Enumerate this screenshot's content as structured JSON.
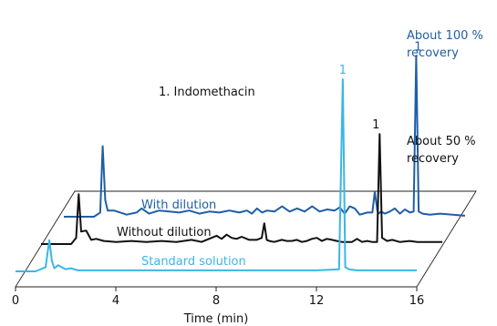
{
  "chart_data": {
    "type": "line",
    "title": "",
    "xlabel": "Time (min)",
    "ylabel": "",
    "xlim": [
      0,
      16
    ],
    "xticks": [
      "0",
      "4",
      "8",
      "12",
      "16"
    ],
    "grid": false,
    "layout": "3d-stacked",
    "annotation": "1. Indomethacin",
    "series": [
      {
        "name": "With dilution",
        "color": "#1f5ea8",
        "peak_label": "1",
        "note": [
          "About 100 %",
          "recovery"
        ],
        "x": [
          0.0,
          1.2,
          1.45,
          1.55,
          1.65,
          1.75,
          2.0,
          2.5,
          2.9,
          3.1,
          3.4,
          3.8,
          4.2,
          4.6,
          5.0,
          5.4,
          5.8,
          6.2,
          6.6,
          7.0,
          7.3,
          7.5,
          7.7,
          7.9,
          8.1,
          8.4,
          8.7,
          9.0,
          9.3,
          9.6,
          9.9,
          10.2,
          10.5,
          10.8,
          11.0,
          11.2,
          11.4,
          11.6,
          11.8,
          12.1,
          12.3,
          12.4,
          12.5,
          12.55,
          12.65,
          12.8,
          13.0,
          13.2,
          13.4,
          13.6,
          13.8,
          13.95,
          14.05,
          14.15,
          14.3,
          14.6,
          15.0,
          15.5,
          16.0
        ],
        "y": [
          0,
          0,
          0.4,
          6.8,
          1.6,
          0.6,
          0.6,
          0.2,
          0.4,
          0.8,
          0.3,
          0.6,
          0.5,
          0.4,
          0.6,
          0.3,
          0.5,
          0.4,
          0.6,
          0.4,
          0.6,
          0.3,
          0.8,
          0.4,
          0.6,
          0.5,
          1.0,
          0.5,
          0.8,
          0.5,
          1.0,
          0.5,
          0.7,
          0.6,
          0.9,
          0.3,
          1.0,
          0.8,
          0.2,
          0.4,
          0.4,
          2.4,
          0.6,
          0.3,
          0.5,
          0.3,
          0.5,
          0.8,
          0.3,
          0.7,
          0.4,
          0.5,
          15.5,
          0.5,
          0.3,
          0.2,
          0.3,
          0.2,
          0.1
        ]
      },
      {
        "name": "Without dilution",
        "color": "#111111",
        "peak_label": "1",
        "note": [
          "About 50 %",
          "recovery"
        ],
        "x": [
          0.0,
          1.2,
          1.4,
          1.5,
          1.6,
          1.8,
          2.0,
          2.2,
          2.5,
          3.0,
          3.6,
          4.2,
          4.8,
          5.4,
          6.0,
          6.4,
          6.6,
          6.8,
          7.0,
          7.2,
          7.4,
          7.6,
          7.8,
          8.0,
          8.3,
          8.6,
          8.8,
          8.9,
          9.0,
          9.1,
          9.3,
          9.6,
          9.8,
          10.0,
          10.2,
          10.4,
          10.6,
          10.8,
          11.0,
          11.2,
          11.4,
          11.6,
          11.8,
          12.0,
          12.2,
          12.4,
          12.6,
          12.8,
          13.0,
          13.2,
          13.4,
          13.5,
          13.6,
          13.8,
          14.0,
          14.3,
          14.7,
          15.0,
          16.0
        ],
        "y": [
          0,
          0,
          0.6,
          4.8,
          1.2,
          1.3,
          0.4,
          0.5,
          0.3,
          0.2,
          0.3,
          0.2,
          0.3,
          0.2,
          0.4,
          0.2,
          0.4,
          0.6,
          0.8,
          0.5,
          0.9,
          0.6,
          0.5,
          0.7,
          0.4,
          0.4,
          0.6,
          2.0,
          0.4,
          0.3,
          0.2,
          0.4,
          0.3,
          0.3,
          0.4,
          0.2,
          0.3,
          0.5,
          0.6,
          0.3,
          0.5,
          0.4,
          0.3,
          0.2,
          0.2,
          0.2,
          0.5,
          0.2,
          0.3,
          0.2,
          0.2,
          10.6,
          0.6,
          0.3,
          0.4,
          0.2,
          0.3,
          0.2,
          0.2
        ]
      },
      {
        "name": "Standard solution",
        "color": "#3bb6e6",
        "peak_label": "1",
        "note": [],
        "x": [
          0.0,
          0.8,
          1.2,
          1.35,
          1.45,
          1.55,
          1.7,
          2.0,
          2.2,
          2.5,
          3.0,
          4.0,
          5.0,
          6.0,
          7.0,
          8.0,
          9.0,
          10.0,
          11.0,
          12.0,
          12.9,
          13.05,
          13.15,
          13.3,
          13.6,
          14.0,
          15.0,
          16.0
        ],
        "y": [
          0,
          0,
          0.4,
          3.0,
          1.0,
          0.3,
          0.6,
          0.2,
          0.3,
          0.1,
          0.1,
          0.1,
          0.1,
          0.1,
          0.1,
          0.1,
          0.1,
          0.1,
          0.1,
          0.1,
          0.2,
          18.5,
          0.4,
          0.2,
          0.1,
          0.1,
          0.1,
          0.1
        ]
      }
    ]
  }
}
